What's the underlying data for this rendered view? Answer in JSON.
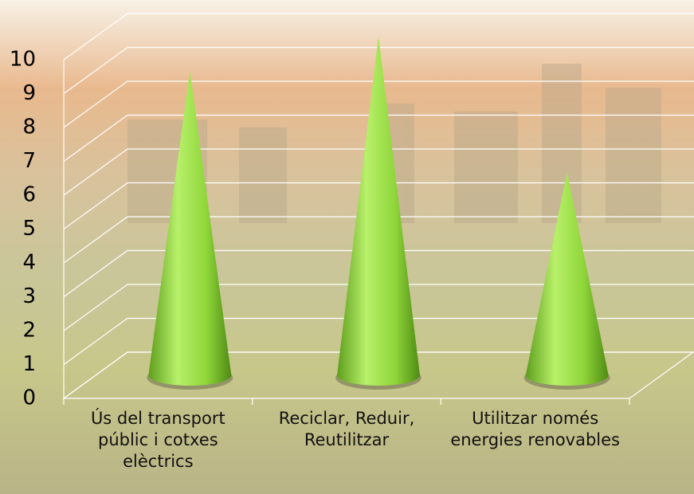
{
  "chart_data": {
    "type": "cone3d",
    "categories": [
      "Ús del transport públic i cotxes elèctrics",
      "Reciclar, Reduir, Reutilitzar",
      "Utilitzar només energies renovables"
    ],
    "values": [
      9,
      10,
      6
    ],
    "color": "#8fd63a",
    "ylim": [
      0,
      10
    ],
    "yticks": [
      0,
      1,
      2,
      3,
      4,
      5,
      6,
      7,
      8,
      9,
      10
    ],
    "grid": true
  }
}
